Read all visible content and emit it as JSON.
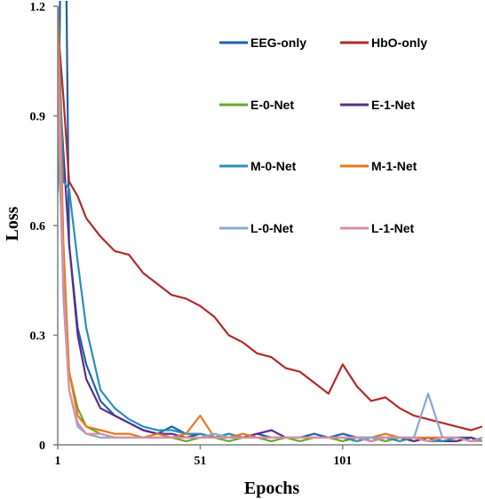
{
  "chart_data": {
    "type": "line",
    "title": "",
    "xlabel": "Epochs",
    "ylabel": "Loss",
    "xlim": [
      1,
      150
    ],
    "ylim": [
      0,
      1.2
    ],
    "xticks": [
      1,
      51,
      101
    ],
    "xtick_labels": [
      "1",
      "51",
      "101"
    ],
    "yticks": [
      0,
      0.3,
      0.6,
      0.9,
      1.2
    ],
    "ytick_labels": [
      "0",
      "0.3",
      "0.6",
      "0.9",
      "1.2"
    ],
    "grid": false,
    "legend_position": "top-right",
    "x": [
      1,
      3,
      5,
      8,
      11,
      16,
      21,
      26,
      31,
      36,
      41,
      46,
      51,
      56,
      61,
      66,
      71,
      76,
      81,
      86,
      91,
      96,
      101,
      106,
      111,
      116,
      121,
      126,
      131,
      136,
      141,
      146,
      150
    ],
    "series": [
      {
        "name": "EEG-only",
        "color": "#1f5fa8",
        "values": [
          0.69,
          2.0,
          0.55,
          0.32,
          0.22,
          0.12,
          0.08,
          0.06,
          0.04,
          0.03,
          0.05,
          0.03,
          0.03,
          0.02,
          0.03,
          0.02,
          0.03,
          0.02,
          0.02,
          0.02,
          0.03,
          0.02,
          0.03,
          0.02,
          0.02,
          0.02,
          0.02,
          0.02,
          0.01,
          0.02,
          0.02,
          0.02,
          0.01
        ]
      },
      {
        "name": "HbO-only",
        "color": "#b22a2a",
        "values": [
          1.15,
          0.95,
          0.72,
          0.68,
          0.62,
          0.57,
          0.53,
          0.52,
          0.47,
          0.44,
          0.41,
          0.4,
          0.38,
          0.35,
          0.3,
          0.28,
          0.25,
          0.24,
          0.21,
          0.2,
          0.17,
          0.14,
          0.22,
          0.16,
          0.12,
          0.13,
          0.1,
          0.08,
          0.07,
          0.06,
          0.05,
          0.04,
          0.05
        ]
      },
      {
        "name": "E-0-Net",
        "color": "#6aa632",
        "values": [
          0.9,
          0.45,
          0.2,
          0.1,
          0.05,
          0.03,
          0.02,
          0.02,
          0.02,
          0.02,
          0.02,
          0.01,
          0.02,
          0.02,
          0.01,
          0.02,
          0.02,
          0.01,
          0.02,
          0.01,
          0.02,
          0.02,
          0.01,
          0.02,
          0.02,
          0.01,
          0.02,
          0.01,
          0.02,
          0.01,
          0.02,
          0.01,
          0.01
        ]
      },
      {
        "name": "E-1-Net",
        "color": "#5a2d8a",
        "values": [
          1.05,
          0.8,
          0.55,
          0.3,
          0.18,
          0.1,
          0.08,
          0.06,
          0.04,
          0.03,
          0.03,
          0.02,
          0.03,
          0.02,
          0.02,
          0.02,
          0.03,
          0.04,
          0.02,
          0.02,
          0.02,
          0.02,
          0.02,
          0.02,
          0.01,
          0.02,
          0.02,
          0.01,
          0.02,
          0.01,
          0.01,
          0.02,
          0.01
        ]
      },
      {
        "name": "M-0-Net",
        "color": "#2a8fb8",
        "values": [
          1.2,
          0.72,
          0.7,
          0.5,
          0.32,
          0.15,
          0.1,
          0.07,
          0.05,
          0.04,
          0.04,
          0.03,
          0.03,
          0.02,
          0.03,
          0.02,
          0.02,
          0.02,
          0.02,
          0.02,
          0.02,
          0.02,
          0.02,
          0.01,
          0.02,
          0.02,
          0.01,
          0.02,
          0.01,
          0.01,
          0.02,
          0.01,
          0.01
        ]
      },
      {
        "name": "M-1-Net",
        "color": "#e8781e",
        "values": [
          1.2,
          0.55,
          0.2,
          0.08,
          0.05,
          0.04,
          0.03,
          0.03,
          0.02,
          0.03,
          0.02,
          0.03,
          0.08,
          0.02,
          0.02,
          0.03,
          0.02,
          0.02,
          0.02,
          0.02,
          0.02,
          0.02,
          0.02,
          0.02,
          0.02,
          0.03,
          0.02,
          0.02,
          0.02,
          0.02,
          0.02,
          0.01,
          0.02
        ]
      },
      {
        "name": "L-0-Net",
        "color": "#8aa6d4",
        "values": [
          1.0,
          0.4,
          0.15,
          0.05,
          0.03,
          0.02,
          0.02,
          0.02,
          0.02,
          0.02,
          0.02,
          0.02,
          0.02,
          0.03,
          0.02,
          0.02,
          0.02,
          0.02,
          0.02,
          0.02,
          0.02,
          0.02,
          0.02,
          0.02,
          0.02,
          0.02,
          0.02,
          0.02,
          0.14,
          0.02,
          0.02,
          0.01,
          0.02
        ]
      },
      {
        "name": "L-1-Net",
        "color": "#dc8ea0",
        "values": [
          1.1,
          0.45,
          0.15,
          0.06,
          0.03,
          0.03,
          0.02,
          0.02,
          0.02,
          0.02,
          0.02,
          0.02,
          0.02,
          0.02,
          0.02,
          0.02,
          0.02,
          0.02,
          0.02,
          0.02,
          0.02,
          0.02,
          0.02,
          0.02,
          0.01,
          0.02,
          0.02,
          0.02,
          0.01,
          0.02,
          0.02,
          0.01,
          0.01
        ]
      }
    ]
  }
}
